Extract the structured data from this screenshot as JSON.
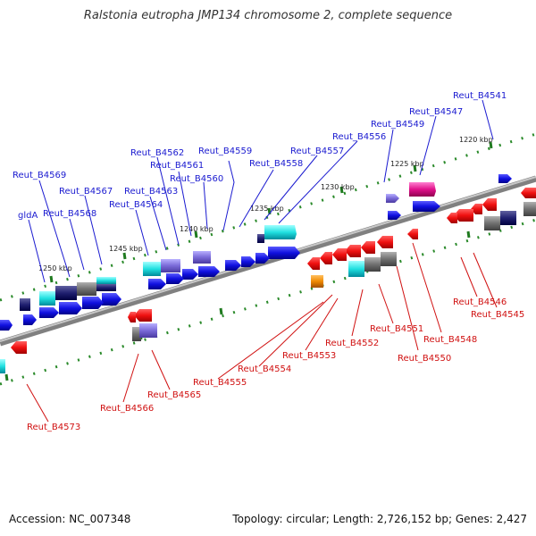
{
  "title": "Ralstonia eutropha JMP134 chromosome 2, complete sequence",
  "footer": {
    "accession": "Accession: NC_007348",
    "summary": "Topology: circular; Length: 2,726,152 bp; Genes: 2,427"
  },
  "colors": {
    "backbone": "#8a8a8a",
    "forward_label": "#1a1ad0",
    "reverse_label": "#d01010",
    "tick": "#2a8a2a"
  },
  "scale_labels": [
    "1220 kbp",
    "1225 kbp",
    "1230 kbp",
    "1235 kbp",
    "1240 kbp",
    "1245 kbp",
    "1250 kbp"
  ],
  "forward_genes": [
    "Reut_B4541",
    "Reut_B4547",
    "Reut_B4549",
    "Reut_B4556",
    "Reut_B4557",
    "Reut_B4558",
    "Reut_B4559",
    "Reut_B4560",
    "Reut_B4561",
    "Reut_B4562",
    "Reut_B4563",
    "Reut_B4564",
    "Reut_B4567",
    "Reut_B4568",
    "Reut_B4569",
    "gldA"
  ],
  "reverse_genes": [
    "Reut_B4545",
    "Reut_B4546",
    "Reut_B4548",
    "Reut_B4550",
    "Reut_B4551",
    "Reut_B4552",
    "Reut_B4553",
    "Reut_B4554",
    "Reut_B4555",
    "Reut_B4565",
    "Reut_B4566",
    "Reut_B4573"
  ]
}
